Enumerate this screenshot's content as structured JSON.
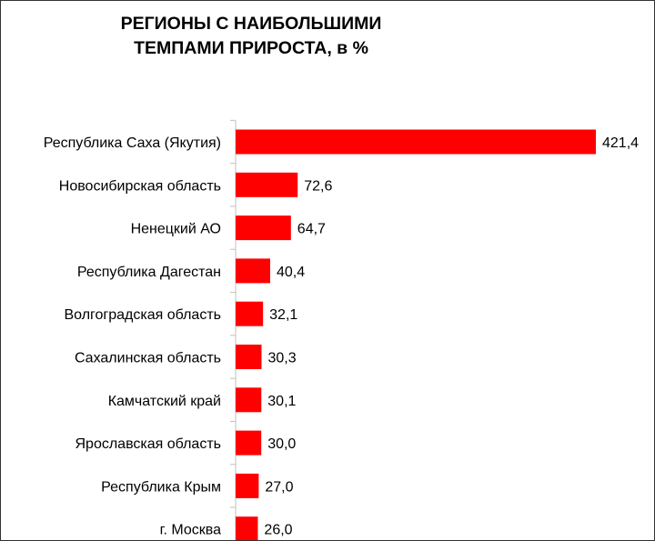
{
  "chart_data": {
    "type": "bar",
    "orientation": "horizontal",
    "title_lines": [
      "РЕГИОНЫ С НАИБОЛЬШИМИ",
      "ТЕМПАМИ ПРИРОСТА, в %"
    ],
    "categories": [
      "Республика Саха (Якутия)",
      "Новосибирская область",
      "Ненецкий АО",
      "Республика Дагестан",
      "Волгоградская область",
      "Сахалинская область",
      "Камчатский край",
      "Ярославская область",
      "Республика Крым",
      "г. Москва"
    ],
    "values": [
      421.4,
      72.6,
      64.7,
      40.4,
      32.1,
      30.3,
      30.1,
      30.0,
      27.0,
      26.0
    ],
    "value_labels": [
      "421,4",
      "72,6",
      "64,7",
      "40,4",
      "32,1",
      "30,3",
      "30,1",
      "30,0",
      "27,0",
      "26,0"
    ],
    "xlim": [
      0,
      421.4
    ],
    "grid": false,
    "legend": "none",
    "bar_color": "#ff0000"
  }
}
